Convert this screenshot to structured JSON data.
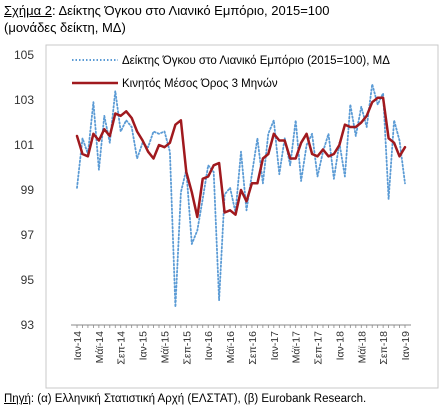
{
  "caption": {
    "label": "Σχήμα 2",
    "title_line1": ": Δείκτης Όγκου στο Λιανικό Εμπόριο, 2015=100",
    "title_line2": "(μονάδες δείκτη, ΜΔ)"
  },
  "source": {
    "label": "Πηγή",
    "text": ": (α) Ελληνική Στατιστική Αρχή (ΕΛΣΤΑΤ), (β) Eurobank Research."
  },
  "colors": {
    "index_series": "#5b9bd5",
    "ma_series": "#a0191e",
    "axis": "#888888"
  },
  "chart_data": {
    "type": "line",
    "title": "",
    "xlabel": "",
    "ylabel": "",
    "ylim": [
      93,
      105
    ],
    "yticks": [
      93,
      95,
      97,
      99,
      101,
      103,
      105
    ],
    "grid": false,
    "legend_position": "top-right",
    "x": [
      "Ιαν-14",
      "Φεβ-14",
      "Μαρ-14",
      "Απρ-14",
      "Μάϊ-14",
      "Ιουν-14",
      "Ιουλ-14",
      "Αυγ-14",
      "Σεπ-14",
      "Οκτ-14",
      "Νοε-14",
      "Δεκ-14",
      "Ιαν-15",
      "Φεβ-15",
      "Μαρ-15",
      "Απρ-15",
      "Μάϊ-15",
      "Ιουν-15",
      "Ιουλ-15",
      "Αυγ-15",
      "Σεπ-15",
      "Οκτ-15",
      "Νοε-15",
      "Δεκ-15",
      "Ιαν-16",
      "Φεβ-16",
      "Μαρ-16",
      "Απρ-16",
      "Μάϊ-16",
      "Ιουν-16",
      "Ιουλ-16",
      "Αυγ-16",
      "Σεπ-16",
      "Οκτ-16",
      "Νοε-16",
      "Δεκ-16",
      "Ιαν-17",
      "Φεβ-17",
      "Μαρ-17",
      "Απρ-17",
      "Μάϊ-17",
      "Ιουν-17",
      "Ιουλ-17",
      "Αυγ-17",
      "Σεπ-17",
      "Οκτ-17",
      "Νοε-17",
      "Δεκ-17",
      "Ιαν-18",
      "Φεβ-18",
      "Μαρ-18",
      "Απρ-18",
      "Μάϊ-18",
      "Ιουν-18",
      "Ιουλ-18",
      "Αυγ-18",
      "Σεπ-18",
      "Οκτ-18",
      "Νοε-18",
      "Δεκ-18",
      "Ιαν-19"
    ],
    "xtick_labels": [
      "Ιαν-14",
      "Μάϊ-14",
      "Σεπ-14",
      "Ιαν-15",
      "Μάϊ-15",
      "Σεπ-15",
      "Ιαν-16",
      "Μάϊ-16",
      "Σεπ-16",
      "Ιαν-17",
      "Μάϊ-17",
      "Σεπ-17",
      "Ιαν-18",
      "Μάϊ-18",
      "Σεπ-18",
      "Ιαν-19"
    ],
    "series": [
      {
        "name": "Δείκτης Όγκου στο Λιανικό Εμπόριο (2015=100), ΜΔ",
        "style": "dotted",
        "values": [
          99.1,
          101.3,
          100.6,
          102.9,
          99.9,
          102.3,
          101.1,
          103.4,
          101.6,
          102.1,
          101.8,
          100.4,
          101.1,
          100.9,
          101.6,
          101.5,
          101.6,
          100.7,
          93.8,
          98.9,
          99.9,
          96.6,
          97.2,
          98.6,
          100.1,
          99.8,
          94.1,
          98.8,
          99.1,
          98.0,
          100.7,
          98.1,
          99.7,
          101.3,
          99.3,
          101.5,
          102.1,
          99.7,
          101.3,
          100.1,
          102.1,
          99.4,
          101.0,
          101.5,
          99.6,
          100.7,
          101.5,
          99.5,
          101.1,
          99.6,
          102.8,
          101.4,
          102.7,
          101.8,
          103.7,
          102.8,
          103.3,
          98.6,
          102.1,
          101.2,
          99.3
        ]
      },
      {
        "name": "Κινητός Μέσος Όρος 3 Μηνών",
        "style": "solid",
        "values": [
          101.4,
          100.6,
          100.5,
          101.5,
          101.2,
          101.7,
          101.4,
          102.4,
          102.3,
          102.5,
          102.2,
          101.6,
          101.2,
          100.7,
          100.4,
          101.0,
          100.9,
          101.1,
          101.9,
          102.1,
          99.8,
          98.9,
          97.8,
          99.5,
          99.6,
          100.1,
          100.2,
          98.0,
          98.1,
          97.9,
          99.0,
          98.5,
          99.3,
          99.3,
          100.4,
          100.6,
          101.5,
          101.2,
          101.2,
          100.4,
          100.4,
          101.1,
          101.5,
          100.6,
          100.5,
          100.8,
          100.5,
          100.6,
          101.0,
          101.9,
          101.8,
          101.8,
          102.0,
          102.3,
          102.9,
          103.1,
          103.1,
          101.3,
          101.1,
          100.5,
          100.9
        ]
      }
    ]
  }
}
